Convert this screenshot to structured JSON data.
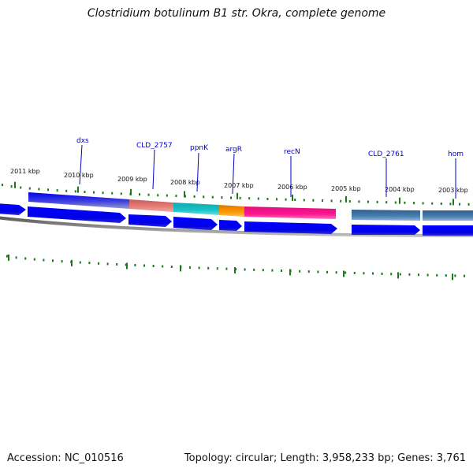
{
  "title": "Clostridium botulinum B1 str. Okra, complete genome",
  "footer": {
    "accession": "Accession: NC_010516",
    "summary": "Topology: circular; Length: 3,958,233 bp; Genes: 3,761"
  },
  "ticks_kbp": [
    {
      "kbp": 2011,
      "label": "2011 kbp"
    },
    {
      "kbp": 2010,
      "label": "2010 kbp"
    },
    {
      "kbp": 2009,
      "label": "2009 kbp"
    },
    {
      "kbp": 2008,
      "label": "2008 kbp"
    },
    {
      "kbp": 2007,
      "label": "2007 kbp"
    },
    {
      "kbp": 2006,
      "label": "2006 kbp"
    },
    {
      "kbp": 2005,
      "label": "2005 kbp"
    },
    {
      "kbp": 2004,
      "label": "2004 kbp"
    },
    {
      "kbp": 2003,
      "label": "2003 kbp"
    }
  ],
  "gene_labels": [
    {
      "name": "dxs"
    },
    {
      "name": "CLD_2757"
    },
    {
      "name": "ppnK"
    },
    {
      "name": "argR"
    },
    {
      "name": "recN"
    },
    {
      "name": "CLD_2761"
    },
    {
      "name": "hom"
    }
  ],
  "colors": {
    "label_blue": "#0000cc",
    "tick_green": "#1a7a1a",
    "cds_blue": "#0000ee",
    "feature_blue": "#0000ee",
    "feature_salmon": "#e8807a",
    "feature_cyan": "#19c3c8",
    "feature_orange": "#ff9900",
    "feature_pink": "#ff1493",
    "feature_steel": "#4a7fb0",
    "backbone": "#7a7a7a"
  }
}
